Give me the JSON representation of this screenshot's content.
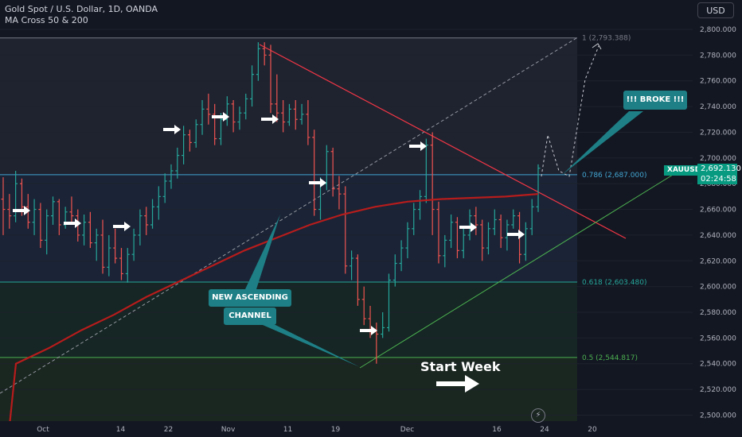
{
  "header": {
    "symbol_title": "Gold Spot / U.S. Dollar, 1D, OANDA",
    "indicator": "MA Cross 50 & 200",
    "currency_button": "USD"
  },
  "price_tag": {
    "symbol": "XAUUSD",
    "price": "2,692.130",
    "countdown": "02:24:58"
  },
  "annotations": {
    "broke": "!!! BROKE !!!",
    "new_ascending": "NEW ASCENDING",
    "channel": "CHANNEL",
    "start_week": "Start Week"
  },
  "colors": {
    "background": "#131722",
    "up": "#26a69a",
    "down": "#ef5350",
    "ma": "#b71c1c",
    "callout": "#1e7f86",
    "trendline": "#f23645",
    "support": "#4caf50"
  },
  "chart_data": {
    "type": "candlestick",
    "y_axis": {
      "range": [
        2495,
        2820
      ],
      "ticks": [
        2500,
        2520,
        2540,
        2560,
        2580,
        2600,
        2620,
        2640,
        2660,
        2680,
        2700,
        2720,
        2740,
        2760,
        2780,
        2800
      ],
      "tick_labels": [
        "2,500.000",
        "2,520.000",
        "2,540.000",
        "2,560.000",
        "2,580.000",
        "2,600.000",
        "2,620.000",
        "2,640.000",
        "2,660.000",
        "2,680.000",
        "2,700.000",
        "2,720.000",
        "2,740.000",
        "2,760.000",
        "2,780.000",
        "2,800.000"
      ]
    },
    "x_axis": {
      "ticks": [
        "2024-10-01",
        "2024-10-14",
        "2024-10-22",
        "2024-11-01",
        "2024-11-11",
        "2024-11-19",
        "2024-12-01",
        "2024-12-16",
        "2024-12-24",
        "2025-01-01"
      ],
      "tick_labels": [
        "Oct",
        "14",
        "22",
        "Nov",
        "11",
        "19",
        "Dec",
        "16",
        "24",
        "20"
      ]
    },
    "fib_levels": [
      {
        "ratio": "1",
        "value": 2793.388,
        "label": "1 (2,793.388)"
      },
      {
        "ratio": "0.786",
        "value": 2687.0,
        "label": "0.786 (2,687.000)"
      },
      {
        "ratio": "0.618",
        "value": 2603.48,
        "label": "0.618 (2,603.480)"
      },
      {
        "ratio": "0.5",
        "value": 2544.817,
        "label": "0.5 (2,544.817)"
      }
    ],
    "candles": [
      {
        "o": 2668,
        "h": 2685,
        "l": 2640,
        "c": 2660
      },
      {
        "o": 2660,
        "h": 2672,
        "l": 2645,
        "c": 2655
      },
      {
        "o": 2655,
        "h": 2690,
        "l": 2650,
        "c": 2680
      },
      {
        "o": 2680,
        "h": 2684,
        "l": 2655,
        "c": 2662
      },
      {
        "o": 2662,
        "h": 2672,
        "l": 2645,
        "c": 2650
      },
      {
        "o": 2650,
        "h": 2668,
        "l": 2640,
        "c": 2660
      },
      {
        "o": 2660,
        "h": 2665,
        "l": 2630,
        "c": 2636
      },
      {
        "o": 2636,
        "h": 2660,
        "l": 2625,
        "c": 2655
      },
      {
        "o": 2655,
        "h": 2670,
        "l": 2648,
        "c": 2666
      },
      {
        "o": 2666,
        "h": 2668,
        "l": 2640,
        "c": 2648
      },
      {
        "o": 2648,
        "h": 2662,
        "l": 2645,
        "c": 2658
      },
      {
        "o": 2658,
        "h": 2670,
        "l": 2650,
        "c": 2655
      },
      {
        "o": 2655,
        "h": 2660,
        "l": 2635,
        "c": 2640
      },
      {
        "o": 2640,
        "h": 2656,
        "l": 2632,
        "c": 2650
      },
      {
        "o": 2650,
        "h": 2658,
        "l": 2630,
        "c": 2634
      },
      {
        "o": 2634,
        "h": 2645,
        "l": 2620,
        "c": 2640
      },
      {
        "o": 2640,
        "h": 2652,
        "l": 2610,
        "c": 2615
      },
      {
        "o": 2615,
        "h": 2640,
        "l": 2608,
        "c": 2630
      },
      {
        "o": 2630,
        "h": 2645,
        "l": 2618,
        "c": 2622
      },
      {
        "o": 2622,
        "h": 2630,
        "l": 2605,
        "c": 2610
      },
      {
        "o": 2610,
        "h": 2630,
        "l": 2603,
        "c": 2625
      },
      {
        "o": 2625,
        "h": 2645,
        "l": 2620,
        "c": 2640
      },
      {
        "o": 2640,
        "h": 2660,
        "l": 2632,
        "c": 2655
      },
      {
        "o": 2655,
        "h": 2662,
        "l": 2640,
        "c": 2648
      },
      {
        "o": 2648,
        "h": 2668,
        "l": 2645,
        "c": 2662
      },
      {
        "o": 2662,
        "h": 2678,
        "l": 2652,
        "c": 2670
      },
      {
        "o": 2670,
        "h": 2688,
        "l": 2665,
        "c": 2682
      },
      {
        "o": 2682,
        "h": 2695,
        "l": 2676,
        "c": 2690
      },
      {
        "o": 2690,
        "h": 2708,
        "l": 2684,
        "c": 2702
      },
      {
        "o": 2702,
        "h": 2725,
        "l": 2695,
        "c": 2718
      },
      {
        "o": 2718,
        "h": 2722,
        "l": 2705,
        "c": 2712
      },
      {
        "o": 2712,
        "h": 2730,
        "l": 2708,
        "c": 2726
      },
      {
        "o": 2726,
        "h": 2745,
        "l": 2718,
        "c": 2738
      },
      {
        "o": 2738,
        "h": 2750,
        "l": 2726,
        "c": 2734
      },
      {
        "o": 2734,
        "h": 2742,
        "l": 2710,
        "c": 2715
      },
      {
        "o": 2715,
        "h": 2735,
        "l": 2710,
        "c": 2730
      },
      {
        "o": 2730,
        "h": 2748,
        "l": 2725,
        "c": 2742
      },
      {
        "o": 2742,
        "h": 2745,
        "l": 2720,
        "c": 2728
      },
      {
        "o": 2728,
        "h": 2740,
        "l": 2722,
        "c": 2735
      },
      {
        "o": 2735,
        "h": 2750,
        "l": 2730,
        "c": 2746
      },
      {
        "o": 2746,
        "h": 2772,
        "l": 2740,
        "c": 2765
      },
      {
        "o": 2765,
        "h": 2790,
        "l": 2760,
        "c": 2785
      },
      {
        "o": 2785,
        "h": 2790,
        "l": 2772,
        "c": 2780
      },
      {
        "o": 2780,
        "h": 2788,
        "l": 2735,
        "c": 2742
      },
      {
        "o": 2742,
        "h": 2765,
        "l": 2728,
        "c": 2735
      },
      {
        "o": 2735,
        "h": 2745,
        "l": 2720,
        "c": 2728
      },
      {
        "o": 2728,
        "h": 2742,
        "l": 2725,
        "c": 2738
      },
      {
        "o": 2738,
        "h": 2745,
        "l": 2722,
        "c": 2730
      },
      {
        "o": 2730,
        "h": 2742,
        "l": 2726,
        "c": 2734
      },
      {
        "o": 2734,
        "h": 2745,
        "l": 2710,
        "c": 2716
      },
      {
        "o": 2716,
        "h": 2722,
        "l": 2655,
        "c": 2660
      },
      {
        "o": 2660,
        "h": 2685,
        "l": 2652,
        "c": 2680
      },
      {
        "o": 2680,
        "h": 2710,
        "l": 2675,
        "c": 2705
      },
      {
        "o": 2705,
        "h": 2708,
        "l": 2670,
        "c": 2676
      },
      {
        "o": 2676,
        "h": 2686,
        "l": 2660,
        "c": 2672
      },
      {
        "o": 2672,
        "h": 2678,
        "l": 2610,
        "c": 2616
      },
      {
        "o": 2616,
        "h": 2628,
        "l": 2605,
        "c": 2622
      },
      {
        "o": 2622,
        "h": 2625,
        "l": 2585,
        "c": 2590
      },
      {
        "o": 2590,
        "h": 2600,
        "l": 2570,
        "c": 2575
      },
      {
        "o": 2575,
        "h": 2585,
        "l": 2560,
        "c": 2565
      },
      {
        "o": 2565,
        "h": 2572,
        "l": 2540,
        "c": 2563
      },
      {
        "o": 2563,
        "h": 2580,
        "l": 2560,
        "c": 2568
      },
      {
        "o": 2568,
        "h": 2610,
        "l": 2565,
        "c": 2605
      },
      {
        "o": 2605,
        "h": 2625,
        "l": 2600,
        "c": 2618
      },
      {
        "o": 2618,
        "h": 2636,
        "l": 2612,
        "c": 2630
      },
      {
        "o": 2630,
        "h": 2650,
        "l": 2622,
        "c": 2645
      },
      {
        "o": 2645,
        "h": 2665,
        "l": 2640,
        "c": 2660
      },
      {
        "o": 2660,
        "h": 2675,
        "l": 2652,
        "c": 2670
      },
      {
        "o": 2670,
        "h": 2715,
        "l": 2665,
        "c": 2710
      },
      {
        "o": 2710,
        "h": 2720,
        "l": 2640,
        "c": 2660
      },
      {
        "o": 2660,
        "h": 2666,
        "l": 2618,
        "c": 2624
      },
      {
        "o": 2624,
        "h": 2640,
        "l": 2615,
        "c": 2636
      },
      {
        "o": 2636,
        "h": 2656,
        "l": 2630,
        "c": 2650
      },
      {
        "o": 2650,
        "h": 2654,
        "l": 2622,
        "c": 2628
      },
      {
        "o": 2628,
        "h": 2646,
        "l": 2622,
        "c": 2640
      },
      {
        "o": 2640,
        "h": 2660,
        "l": 2636,
        "c": 2655
      },
      {
        "o": 2655,
        "h": 2662,
        "l": 2640,
        "c": 2648
      },
      {
        "o": 2648,
        "h": 2652,
        "l": 2620,
        "c": 2630
      },
      {
        "o": 2630,
        "h": 2650,
        "l": 2625,
        "c": 2645
      },
      {
        "o": 2645,
        "h": 2660,
        "l": 2640,
        "c": 2652
      },
      {
        "o": 2652,
        "h": 2656,
        "l": 2630,
        "c": 2638
      },
      {
        "o": 2638,
        "h": 2652,
        "l": 2628,
        "c": 2648
      },
      {
        "o": 2648,
        "h": 2660,
        "l": 2645,
        "c": 2655
      },
      {
        "o": 2655,
        "h": 2658,
        "l": 2618,
        "c": 2625
      },
      {
        "o": 2625,
        "h": 2650,
        "l": 2620,
        "c": 2645
      },
      {
        "o": 2645,
        "h": 2668,
        "l": 2640,
        "c": 2662
      },
      {
        "o": 2662,
        "h": 2695,
        "l": 2658,
        "c": 2692
      }
    ],
    "moving_average": [
      2540,
      2552,
      2566,
      2578,
      2592,
      2604,
      2616,
      2628,
      2638,
      2648,
      2656,
      2662,
      2666,
      2668,
      2669,
      2670,
      2672
    ]
  }
}
